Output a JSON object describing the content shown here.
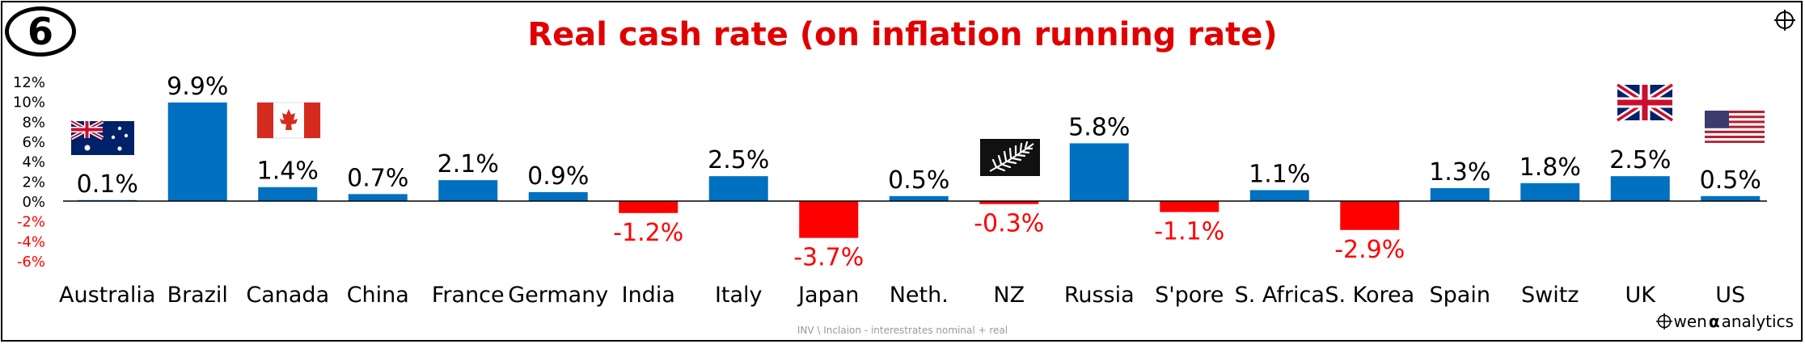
{
  "badge": "6",
  "footer_note": "INV \\ Inclaion - interestrates nominal + real",
  "brand": {
    "prefix": "wen",
    "glyph": "α",
    "suffix": "analytics"
  },
  "colors": {
    "positive": "#0070c0",
    "negative": "#ff0000",
    "title": "#e00000"
  },
  "icons": [
    "crosshair-icon",
    "flag-australia",
    "flag-canada",
    "flag-nz-fern",
    "flag-uk",
    "flag-us"
  ],
  "chart_data": {
    "type": "bar",
    "title": "Real cash rate (on inflation running rate)",
    "xlabel": "",
    "ylabel": "",
    "ylim": [
      -6,
      12
    ],
    "yticks": [
      "12%",
      "10%",
      "8%",
      "6%",
      "4%",
      "2%",
      "0%",
      "-2%",
      "-4%",
      "-6%"
    ],
    "ytick_values": [
      12,
      10,
      8,
      6,
      4,
      2,
      0,
      -2,
      -4,
      -6
    ],
    "grid": false,
    "categories": [
      "Australia",
      "Brazil",
      "Canada",
      "China",
      "France",
      "Germany",
      "India",
      "Italy",
      "Japan",
      "Neth.",
      "NZ",
      "Russia",
      "S'pore",
      "S. Africa",
      "S. Korea",
      "Spain",
      "Switz",
      "UK",
      "US"
    ],
    "values": [
      0.1,
      9.9,
      1.4,
      0.7,
      2.1,
      0.9,
      -1.2,
      2.5,
      -3.7,
      0.5,
      -0.3,
      5.8,
      -1.1,
      1.1,
      -2.9,
      1.3,
      1.8,
      2.5,
      0.5
    ],
    "data_labels": [
      "0.1%",
      "9.9%",
      "1.4%",
      "0.7%",
      "2.1%",
      "0.9%",
      "-1.2%",
      "2.5%",
      "-3.7%",
      "0.5%",
      "-0.3%",
      "5.8%",
      "-1.1%",
      "1.1%",
      "-2.9%",
      "1.3%",
      "1.8%",
      "2.5%",
      "0.5%"
    ]
  }
}
